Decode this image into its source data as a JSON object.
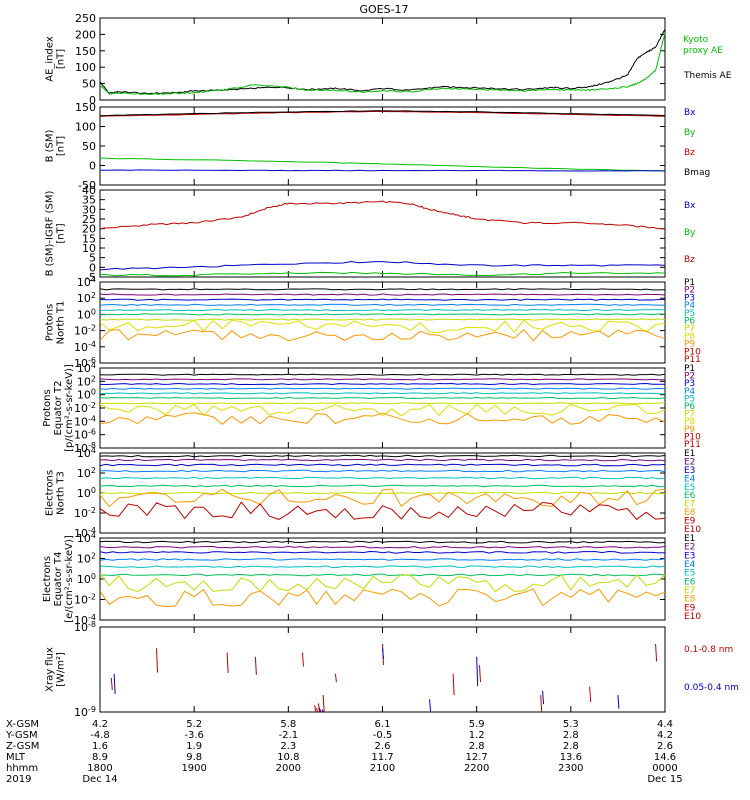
{
  "title": "GOES-17",
  "chart_data": {
    "type": "line",
    "x_range_hours": [
      18,
      24
    ],
    "panels": [
      {
        "id": "ae",
        "ylabel": [
          "AE_index",
          "[nT]"
        ],
        "yticks": [
          "250",
          "200",
          "150",
          "100",
          "50",
          "0"
        ],
        "ylim": [
          0,
          250
        ],
        "legend": [
          {
            "label": "Kyoto",
            "color": "#00c000"
          },
          {
            "label": "proxy AE",
            "color": "#00c000"
          },
          {
            "label": "Themis AE",
            "color": "#000000"
          }
        ],
        "series": [
          {
            "name": "Themis AE",
            "color": "#000000",
            "x": [
              18.0,
              18.1,
              18.2,
              18.5,
              18.8,
              19.0,
              19.3,
              19.6,
              19.9,
              20.2,
              20.5,
              20.8,
              21.0,
              21.3,
              21.6,
              21.9,
              22.2,
              22.5,
              22.8,
              23.0,
              23.2,
              23.4,
              23.6,
              23.7,
              23.8,
              23.9,
              24.0
            ],
            "y": [
              55,
              20,
              25,
              20,
              22,
              28,
              30,
              35,
              40,
              32,
              36,
              28,
              35,
              30,
              40,
              38,
              35,
              32,
              38,
              35,
              40,
              55,
              75,
              125,
              145,
              160,
              215
            ]
          },
          {
            "name": "Kyoto proxy AE",
            "color": "#00c000",
            "x": [
              18.0,
              18.1,
              18.2,
              18.5,
              18.8,
              19.0,
              19.3,
              19.6,
              19.9,
              20.2,
              20.5,
              20.8,
              21.0,
              21.3,
              21.6,
              21.9,
              22.2,
              22.5,
              22.8,
              23.0,
              23.2,
              23.4,
              23.6,
              23.7,
              23.8,
              23.9,
              24.0
            ],
            "y": [
              45,
              18,
              22,
              18,
              20,
              22,
              30,
              45,
              42,
              30,
              30,
              24,
              28,
              25,
              35,
              34,
              30,
              28,
              32,
              30,
              30,
              35,
              40,
              50,
              65,
              90,
              205
            ]
          }
        ]
      },
      {
        "id": "bsm",
        "ylabel": [
          "B (SM)",
          "[nT]"
        ],
        "yticks": [
          "150",
          "100",
          "50",
          "0",
          "-50"
        ],
        "ylim": [
          -60,
          150
        ],
        "legend": [
          {
            "label": "Bx",
            "color": "#0000c8"
          },
          {
            "label": "By",
            "color": "#00c000"
          },
          {
            "label": "Bz",
            "color": "#c00000"
          },
          {
            "label": "Bmag",
            "color": "#000000"
          }
        ],
        "series": [
          {
            "name": "Bz",
            "color": "#c00000",
            "x": [
              18,
              19,
              20,
              21,
              22,
              23,
              24
            ],
            "y": [
              125,
              130,
              135,
              138,
              135,
              130,
              125
            ]
          },
          {
            "name": "Bmag",
            "color": "#000000",
            "x": [
              18,
              19,
              20,
              21,
              22,
              23,
              24
            ],
            "y": [
              127,
              132,
              137,
              140,
              137,
              132,
              127
            ]
          },
          {
            "name": "By",
            "color": "#00c000",
            "x": [
              18,
              19,
              20,
              21,
              22,
              23,
              24
            ],
            "y": [
              12,
              8,
              3,
              -3,
              -10,
              -17,
              -22
            ]
          },
          {
            "name": "Bx",
            "color": "#0000c8",
            "x": [
              18,
              19,
              20,
              21,
              22,
              23,
              24
            ],
            "y": [
              -20,
              -20,
              -21,
              -21,
              -21,
              -22,
              -22
            ]
          }
        ]
      },
      {
        "id": "bigrf",
        "ylabel": [
          "B (SM)-IGRF (SM)",
          "[nT]"
        ],
        "yticks": [
          "40",
          "35",
          "30",
          "25",
          "20",
          "15",
          "10",
          "5",
          "0",
          "-5"
        ],
        "ylim": [
          -5,
          40
        ],
        "legend": [
          {
            "label": "Bx",
            "color": "#0000c8"
          },
          {
            "label": "By",
            "color": "#00c000"
          },
          {
            "label": "Bz",
            "color": "#c00000"
          }
        ],
        "series": [
          {
            "name": "Bz",
            "color": "#c00000",
            "x": [
              18,
              18.5,
              19,
              19.5,
              19.8,
              20,
              20.5,
              21,
              21.3,
              21.5,
              21.8,
              22,
              22.5,
              23,
              23.5,
              24
            ],
            "y": [
              20,
              22,
              23,
              26,
              31,
              33,
              33,
              34,
              33,
              30,
              27,
              25,
              23,
              23,
              22,
              20
            ]
          },
          {
            "name": "Bx",
            "color": "#0000c8",
            "x": [
              18,
              19,
              20,
              21,
              22,
              23,
              24
            ],
            "y": [
              -1,
              0,
              2,
              3,
              1,
              1,
              1
            ]
          },
          {
            "name": "By",
            "color": "#00c000",
            "x": [
              18,
              19,
              20,
              21,
              22,
              23,
              24
            ],
            "y": [
              -4,
              -4,
              -3,
              -3,
              -4,
              -3,
              -3
            ]
          }
        ]
      },
      {
        "id": "pn",
        "ylabel": [
          "Protons",
          "North T1"
        ],
        "yticks": [
          "10^4",
          "10^2",
          "10^0",
          "10^-2",
          "10^-4",
          "10^-6"
        ],
        "ylim_log": [
          -7,
          4
        ],
        "legend": [
          {
            "label": "P1",
            "color": "#000000"
          },
          {
            "label": "P2",
            "color": "#800080"
          },
          {
            "label": "P3",
            "color": "#0000c8"
          },
          {
            "label": "P4",
            "color": "#0080ff"
          },
          {
            "label": "P5",
            "color": "#00c0c0"
          },
          {
            "label": "P6",
            "color": "#00c060"
          },
          {
            "label": "P7",
            "color": "#c0e000"
          },
          {
            "label": "P8",
            "color": "#e0e000"
          },
          {
            "label": "P9",
            "color": "#ff9900"
          },
          {
            "label": "P10",
            "color": "#c00000"
          },
          {
            "label": "P11",
            "color": "#c00000"
          }
        ],
        "series_levels_log": [
          3.0,
          2.3,
          1.6,
          0.9,
          0.2,
          -0.4,
          -1.1,
          -2.0,
          -3.2
        ]
      },
      {
        "id": "pe",
        "ylabel": [
          "Protons",
          "Equator T2",
          "[p/(cm²-s-sr-keV)]"
        ],
        "yticks": [
          "10^4",
          "10^2",
          "10^0",
          "10^-2",
          "10^-4",
          "10^-6",
          "10^-8"
        ],
        "ylim_log": [
          -8,
          4
        ],
        "legend": [
          {
            "label": "P1",
            "color": "#000000"
          },
          {
            "label": "P2",
            "color": "#800080"
          },
          {
            "label": "P3",
            "color": "#0000c8"
          },
          {
            "label": "P4",
            "color": "#0080ff"
          },
          {
            "label": "P5",
            "color": "#00c0c0"
          },
          {
            "label": "P6",
            "color": "#00c060"
          },
          {
            "label": "P7",
            "color": "#c0e000"
          },
          {
            "label": "P8",
            "color": "#e0e000"
          },
          {
            "label": "P9",
            "color": "#ff9900"
          },
          {
            "label": "P10",
            "color": "#c00000"
          },
          {
            "label": "P11",
            "color": "#c00000"
          }
        ],
        "series_levels_log": [
          3.0,
          2.3,
          1.6,
          0.9,
          0.2,
          -0.5,
          -1.3,
          -2.3,
          -3.6
        ]
      },
      {
        "id": "en",
        "ylabel": [
          "Electrons",
          "North T3"
        ],
        "yticks": [
          "10^4",
          "10^2",
          "10^0",
          "10^-2",
          "10^-4"
        ],
        "ylim_log": [
          -4,
          4
        ],
        "legend": [
          {
            "label": "E1",
            "color": "#000000"
          },
          {
            "label": "E2",
            "color": "#800080"
          },
          {
            "label": "E3",
            "color": "#0000c8"
          },
          {
            "label": "E4",
            "color": "#0080ff"
          },
          {
            "label": "E5",
            "color": "#00c0c0"
          },
          {
            "label": "E6",
            "color": "#00c060"
          },
          {
            "label": "E7",
            "color": "#c0e000"
          },
          {
            "label": "E8",
            "color": "#ff9900"
          },
          {
            "label": "E9",
            "color": "#c00000"
          },
          {
            "label": "E10",
            "color": "#c00000"
          }
        ],
        "series_levels_log": [
          3.7,
          3.3,
          2.8,
          2.2,
          1.5,
          0.7,
          0.0,
          -0.5,
          -1.8
        ]
      },
      {
        "id": "ee",
        "ylabel": [
          "Electrons",
          "Equator T4",
          "[e/(cm²-s-sr-keV)]"
        ],
        "yticks": [
          "10^4",
          "10^2",
          "10^0",
          "10^-2",
          "10^-4"
        ],
        "ylim_log": [
          -4,
          4
        ],
        "legend": [
          {
            "label": "E1",
            "color": "#000000"
          },
          {
            "label": "E2",
            "color": "#800080"
          },
          {
            "label": "E3",
            "color": "#0000c8"
          },
          {
            "label": "E4",
            "color": "#0080ff"
          },
          {
            "label": "E5",
            "color": "#00c0c0"
          },
          {
            "label": "E6",
            "color": "#00c060"
          },
          {
            "label": "E7",
            "color": "#c0e000"
          },
          {
            "label": "E8",
            "color": "#ff9900"
          },
          {
            "label": "E9",
            "color": "#c00000"
          },
          {
            "label": "E10",
            "color": "#c00000"
          }
        ],
        "series_levels_log": [
          3.6,
          3.1,
          2.6,
          1.9,
          1.2,
          0.4,
          -0.4,
          -1.8
        ]
      },
      {
        "id": "xray",
        "ylabel": [
          "Xray flux",
          "[W/m²]"
        ],
        "yticks": [
          "10^-8",
          "10^-9"
        ],
        "ylim_log": [
          -9,
          -8
        ],
        "legend": [
          {
            "label": "0.1-0.8 nm",
            "color": "#c00000"
          },
          {
            "label": "0.05-0.4 nm",
            "color": "#0000c8"
          }
        ],
        "series": [
          {
            "name": "0.1-0.8 nm",
            "color": "#c00000",
            "x": [
              18.12,
              18.6,
              19.35,
              19.65,
              20.15,
              20.28,
              20.3,
              20.32,
              20.34,
              20.37,
              20.5,
              21.0,
              21.75,
              22.03,
              22.68,
              23.2,
              23.9
            ],
            "y_log": [
              -8.6,
              -8.25,
              -8.3,
              -8.35,
              -8.3,
              -8.92,
              -8.95,
              -8.9,
              -8.98,
              -8.8,
              -8.55,
              -8.2,
              -8.55,
              -8.45,
              -8.8,
              -8.7,
              -8.2
            ]
          },
          {
            "name": "0.05-0.4 nm",
            "color": "#0000c8",
            "x": [
              18.15,
              18.95,
              20.33,
              20.36,
              21.0,
              21.5,
              22.0,
              22.7,
              23.5
            ],
            "y_log": [
              -8.55,
              -9.0,
              -8.95,
              -8.97,
              -8.25,
              -8.85,
              -8.35,
              -8.75,
              -8.8
            ]
          }
        ]
      }
    ],
    "x_axis": {
      "row_labels": [
        "X-GSM",
        "Y-GSM",
        "Z-GSM",
        "MLT",
        "hhmm",
        "2019"
      ],
      "ticks_hours": [
        18,
        19,
        20,
        21,
        22,
        23,
        24
      ],
      "columns": [
        [
          "4.2",
          "-4.8",
          "1.6",
          "8.9",
          "1800",
          "Dec 14"
        ],
        [
          "5.2",
          "-3.6",
          "1.9",
          "9.8",
          "1900",
          ""
        ],
        [
          "5.8",
          "-2.1",
          "2.3",
          "10.8",
          "2000",
          ""
        ],
        [
          "6.1",
          "-0.5",
          "2.6",
          "11.7",
          "2100",
          ""
        ],
        [
          "5.9",
          "1.2",
          "2.8",
          "12.7",
          "2200",
          ""
        ],
        [
          "5.3",
          "2.8",
          "2.8",
          "13.6",
          "2300",
          ""
        ],
        [
          "4.4",
          "4.2",
          "2.6",
          "14.6",
          "0000",
          "Dec 15"
        ]
      ]
    }
  }
}
